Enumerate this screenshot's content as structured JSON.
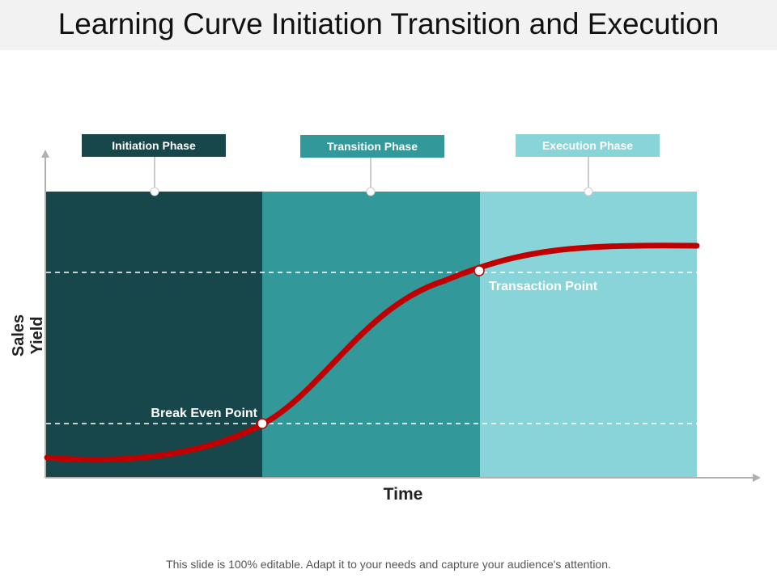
{
  "title": "Learning Curve Initiation Transition and Execution",
  "phases": [
    {
      "label": "Initiation Phase",
      "color": "#17474b"
    },
    {
      "label": "Transition Phase",
      "color": "#32989a"
    },
    {
      "label": "Execution Phase",
      "color": "#88d4d8"
    }
  ],
  "axes": {
    "y_label": "Sales Yield",
    "x_label": "Time"
  },
  "points": {
    "break_even": "Break Even Point",
    "transaction": "Transaction Point"
  },
  "curve_color": "#c00000",
  "footer": "This slide is 100% editable. Adapt it to your needs and capture your audience's attention."
}
